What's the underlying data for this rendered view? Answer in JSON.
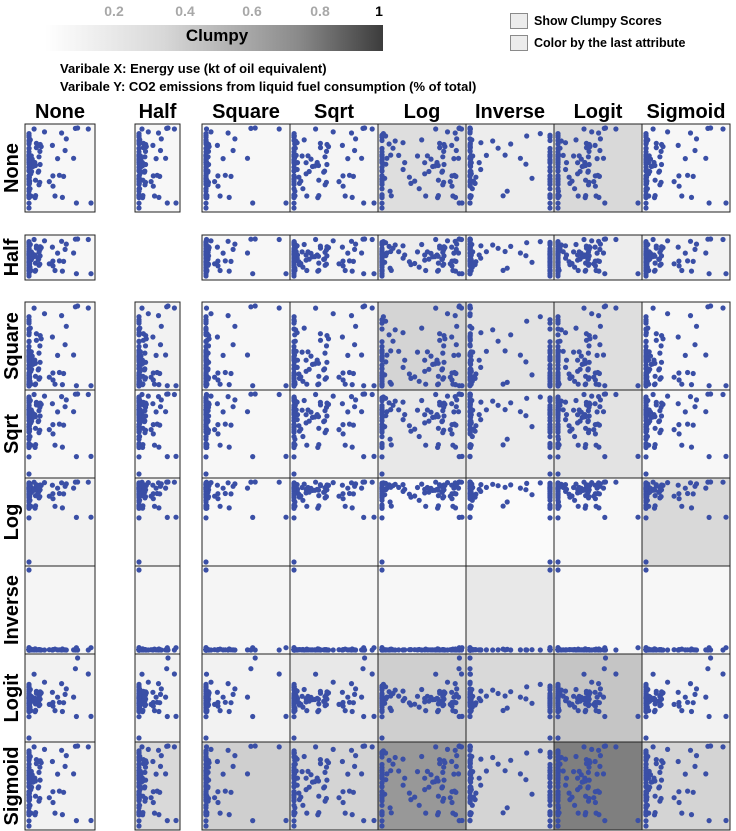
{
  "legend": {
    "ticks": [
      "0.2",
      "0.4",
      "0.6",
      "0.8",
      "1"
    ],
    "title": "Clumpy"
  },
  "checkboxes": {
    "show_scores": "Show Clumpy Scores",
    "color_last": "Color by the last attribute"
  },
  "variables": {
    "x_line": "Varibale X: Energy use (kt of oil equivalent)",
    "y_line": "Varibale Y: CO2 emissions from liquid fuel consumption (% of total)"
  },
  "colors": {
    "point": "#3a4fa6",
    "cell_border": "#222222"
  },
  "chart_data": {
    "type": "scatter",
    "columns": [
      "None",
      "Half",
      "Square",
      "Sqrt",
      "Log",
      "Inverse",
      "Logit",
      "Sigmoid"
    ],
    "rows": [
      "None",
      "Half",
      "Square",
      "Sqrt",
      "Log",
      "Inverse",
      "Logit",
      "Sigmoid"
    ],
    "clumpy_scores": [
      [
        0.02,
        0.02,
        0.02,
        0.03,
        0.12,
        0.06,
        0.14,
        0.02
      ],
      [
        0.02,
        null,
        0.02,
        0.03,
        0.06,
        0.04,
        0.06,
        0.04
      ],
      [
        0.02,
        0.04,
        0.02,
        0.03,
        0.16,
        0.1,
        0.12,
        0.02
      ],
      [
        0.02,
        0.02,
        0.02,
        0.03,
        0.08,
        0.07,
        0.1,
        0.02
      ],
      [
        0.04,
        0.04,
        0.02,
        0.02,
        0.01,
        0.01,
        0.02,
        0.14
      ],
      [
        0.03,
        0.03,
        0.03,
        0.02,
        0.02,
        0.08,
        0.02,
        0.02
      ],
      [
        0.04,
        0.04,
        0.04,
        0.08,
        0.18,
        0.14,
        0.22,
        0.04
      ],
      [
        0.04,
        0.14,
        0.18,
        0.16,
        0.4,
        0.16,
        0.5,
        0.16
      ]
    ]
  }
}
